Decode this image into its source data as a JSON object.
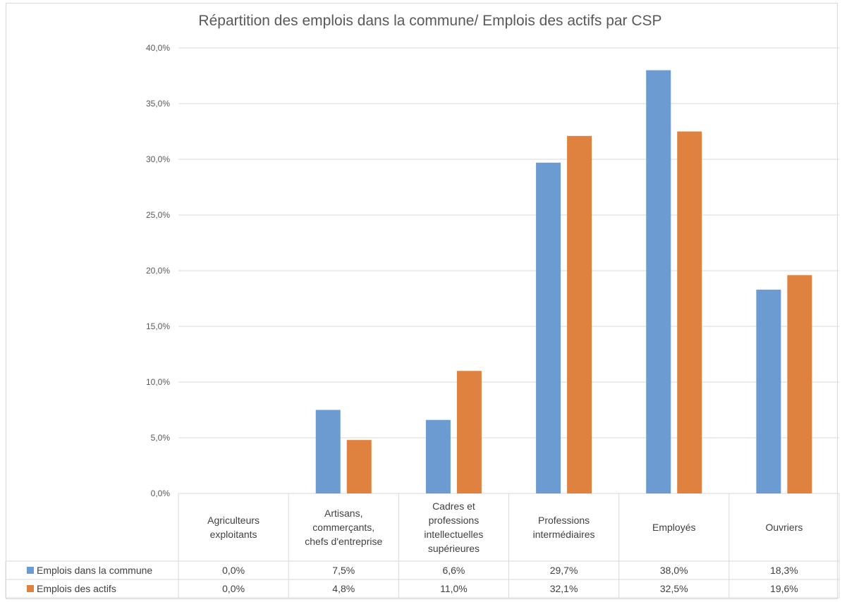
{
  "chart_data": {
    "type": "bar",
    "title": "Répartition des emplois dans la commune/ Emplois des actifs par CSP",
    "categories": [
      [
        "Agriculteurs",
        "exploitants"
      ],
      [
        "Artisans,",
        "commerçants,",
        "chefs d'entreprise"
      ],
      [
        "Cadres et",
        "professions",
        "intellectuelles",
        "supérieures"
      ],
      [
        "Professions",
        "intermédiaires"
      ],
      [
        "Employés"
      ],
      [
        "Ouvriers"
      ]
    ],
    "series": [
      {
        "name": "Emplois dans la commune",
        "color": "#6b9bd1",
        "values": [
          0.0,
          7.5,
          6.6,
          29.7,
          38.0,
          18.3
        ],
        "labels": [
          "0,0%",
          "7,5%",
          "6,6%",
          "29,7%",
          "38,0%",
          "18,3%"
        ]
      },
      {
        "name": "Emplois des actifs",
        "color": "#e0823f",
        "values": [
          0.0,
          4.8,
          11.0,
          32.1,
          32.5,
          19.6
        ],
        "labels": [
          "0,0%",
          "4,8%",
          "11,0%",
          "32,1%",
          "32,5%",
          "19,6%"
        ]
      }
    ],
    "ylim": [
      0,
      40
    ],
    "yticks": [
      "0,0%",
      "5,0%",
      "10,0%",
      "15,0%",
      "20,0%",
      "25,0%",
      "30,0%",
      "35,0%",
      "40,0%"
    ],
    "grid": true,
    "legend": "data-table"
  }
}
